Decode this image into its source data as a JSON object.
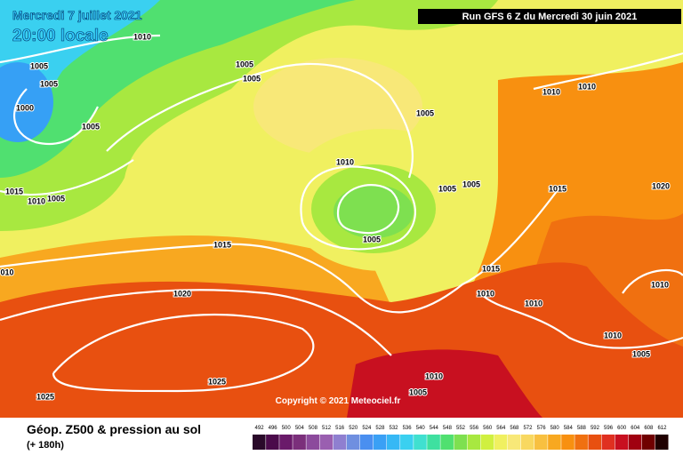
{
  "header": {
    "date": "Mercredi 7 juillet 2021",
    "time": "20:00 locale",
    "run": "Run GFS 6 Z du Mercredi 30 juin 2021"
  },
  "isobar_labels": [
    "1010",
    "1005",
    "1005",
    "1000",
    "1005",
    "1005",
    "1005",
    "1005",
    "1010",
    "1010",
    "1010",
    "1015",
    "1010",
    "1005",
    "1005",
    "1005",
    "1015",
    "1020",
    "1005",
    "1015",
    "010",
    "1015",
    "1020",
    "1010",
    "1010",
    "1010",
    "1010",
    "1005",
    "1025",
    "1010",
    "1005",
    "1025"
  ],
  "copyright": "Copyright © 2021 Meteociel.fr",
  "footer": {
    "title": "Géop. Z500 & pression au sol",
    "subtitle": "(+ 180h)"
  },
  "legend": {
    "labels": [
      492,
      496,
      500,
      504,
      508,
      512,
      516,
      520,
      524,
      528,
      532,
      536,
      540,
      544,
      548,
      552,
      556,
      560,
      564,
      568,
      572,
      576,
      580,
      584,
      588,
      592,
      596,
      600,
      604,
      608,
      612
    ],
    "colors": [
      "#2a0a2a",
      "#4b0b4b",
      "#6a1a6a",
      "#7b2f7b",
      "#8c4a9c",
      "#9a5fb0",
      "#8f7fd0",
      "#6f8fe0",
      "#4a8ff0",
      "#3aa0f5",
      "#36b8f5",
      "#3ad0f0",
      "#40e0d0",
      "#3fe0a0",
      "#50e070",
      "#7ee050",
      "#a8e840",
      "#d0f040",
      "#f0f060",
      "#f8e878",
      "#f8d860",
      "#f8c040",
      "#f8a820",
      "#f89010",
      "#f07010",
      "#e85010",
      "#e03020",
      "#c81020",
      "#a00010",
      "#700000",
      "#200000"
    ]
  }
}
